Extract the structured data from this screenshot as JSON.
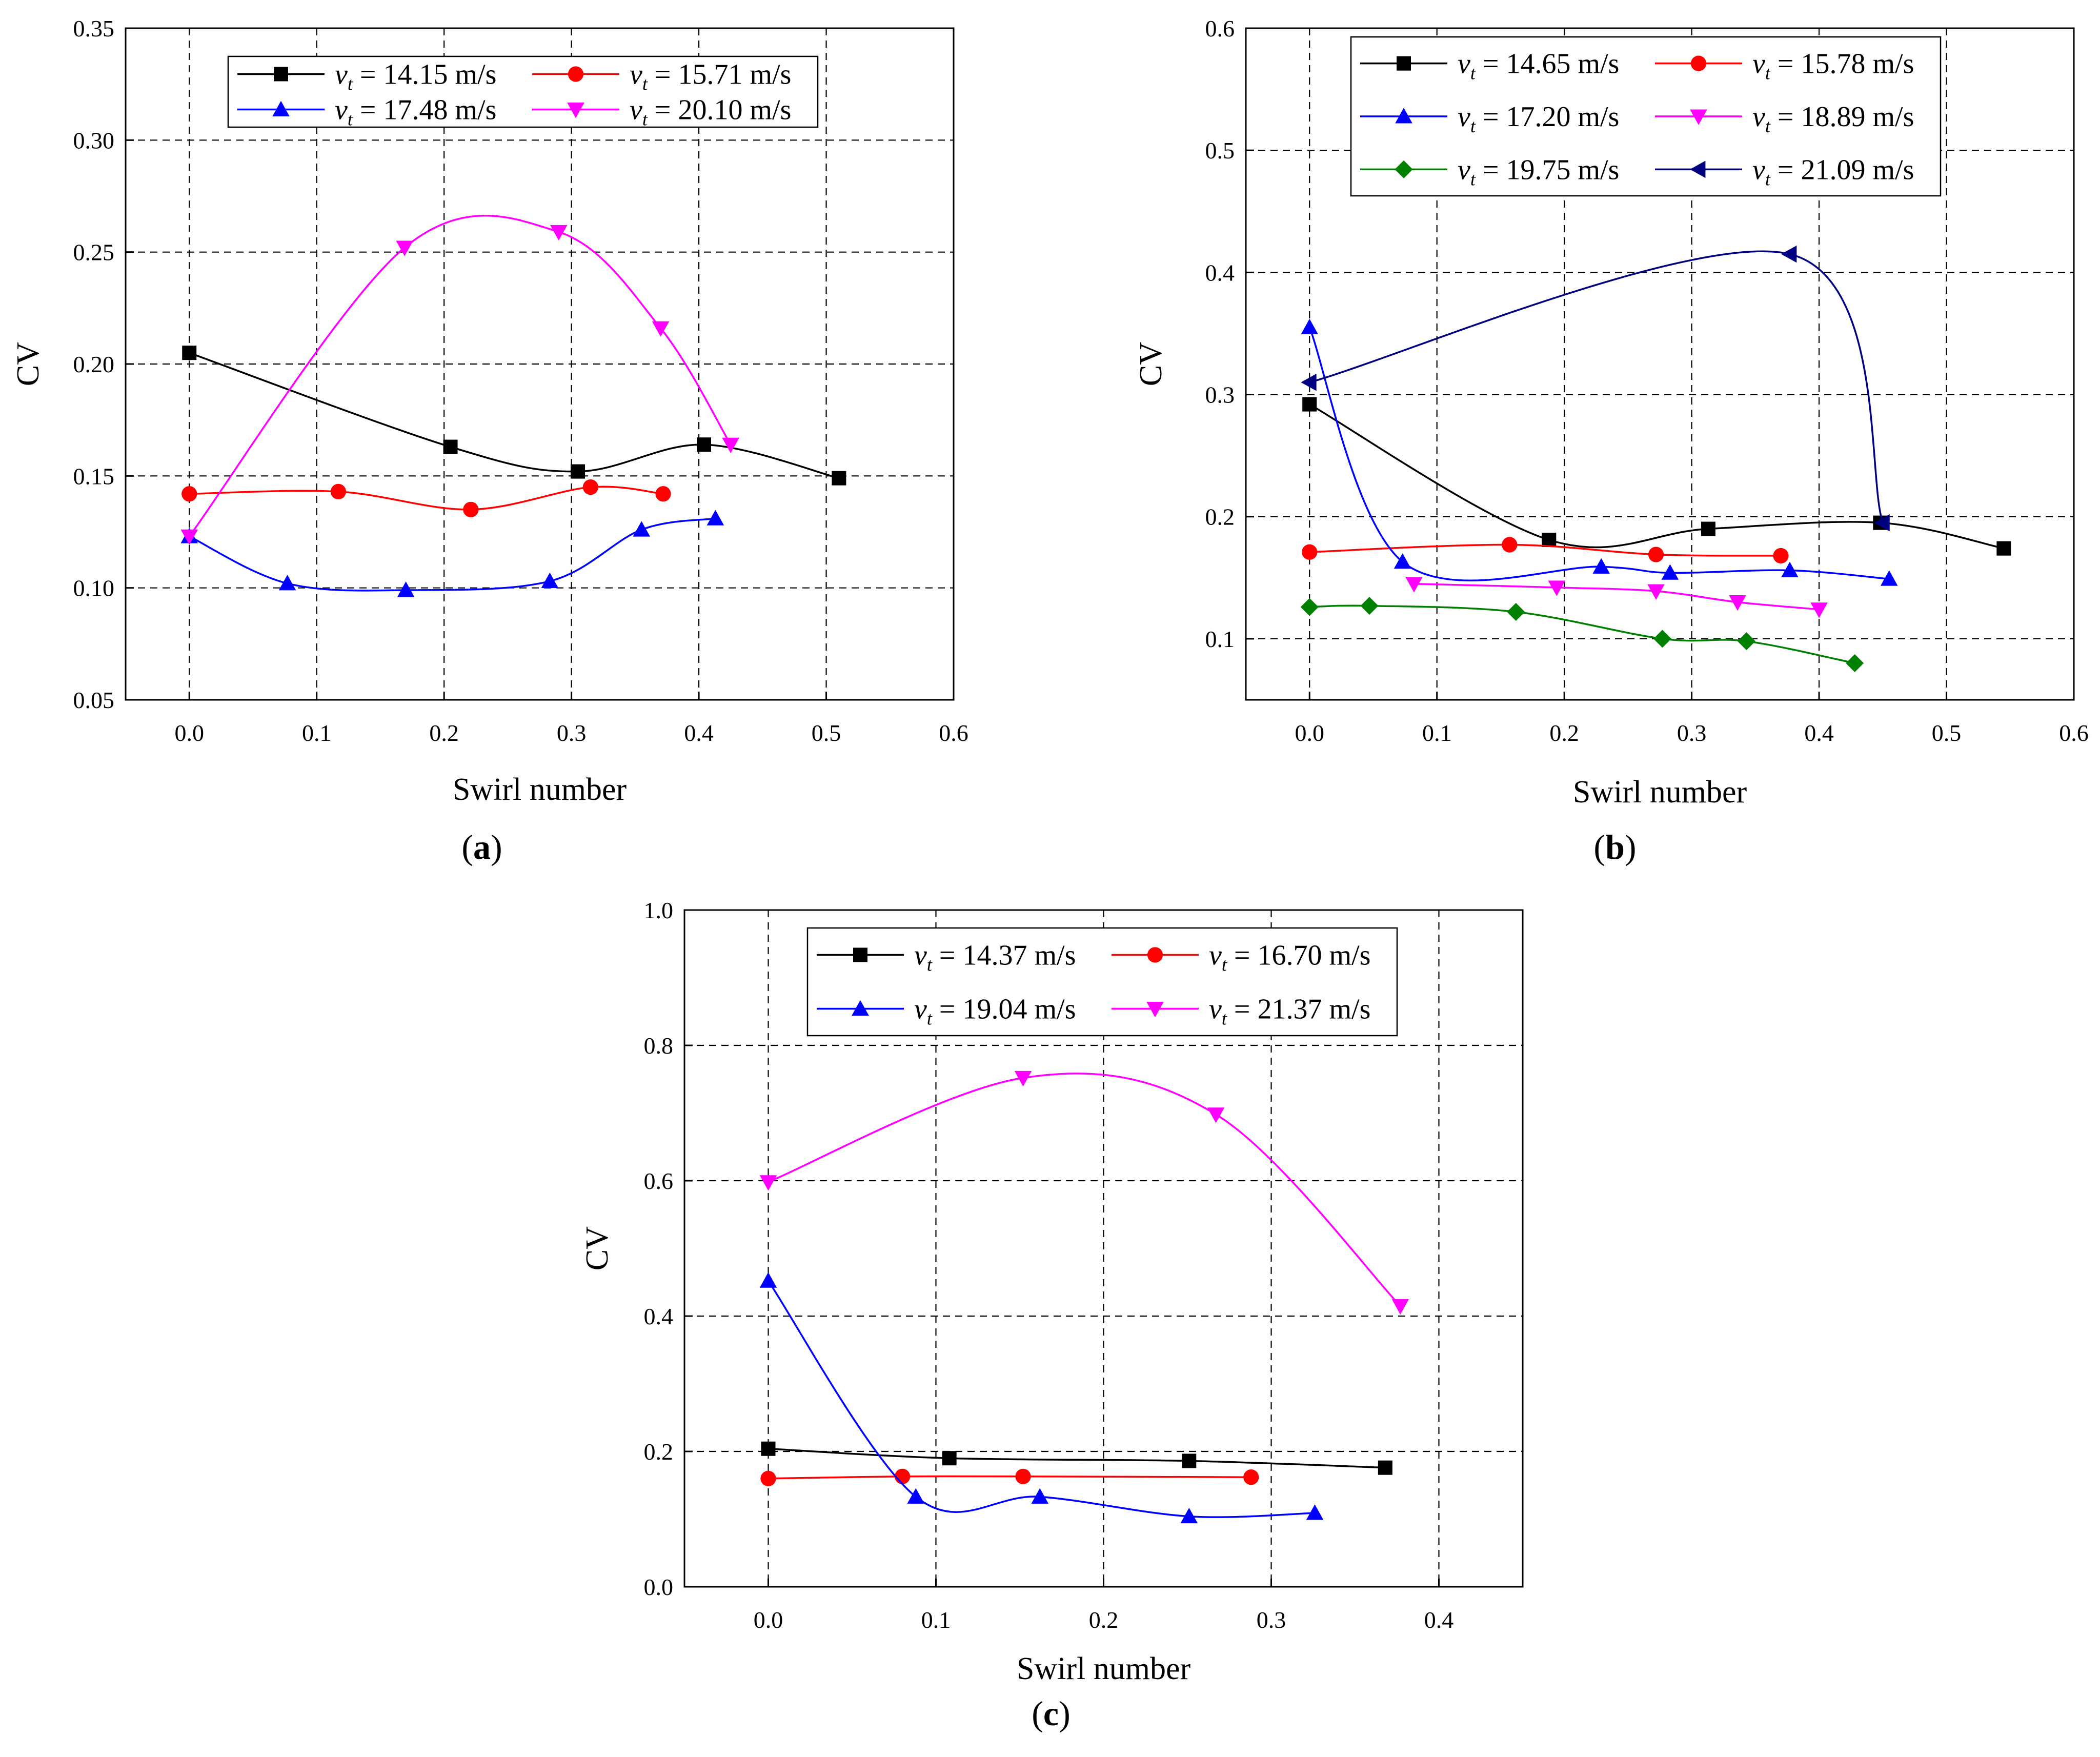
{
  "chart_data": [
    {
      "id": "a",
      "type": "line",
      "panel_label": "(a)",
      "panel_letter": "a",
      "xlabel": "Swirl number",
      "ylabel": "CV",
      "xlim": [
        -0.05,
        0.6
      ],
      "ylim": [
        0.05,
        0.35
      ],
      "xticks": [
        "0.0",
        "0.1",
        "0.2",
        "0.3",
        "0.4",
        "0.5",
        "0.6"
      ],
      "yticks": [
        "0.05",
        "0.10",
        "0.15",
        "0.20",
        "0.25",
        "0.30",
        "0.35"
      ],
      "grid": true,
      "legend_columns": 2,
      "series": [
        {
          "name": "vt = 14.15 m/s",
          "legend_var": "v",
          "legend_sub": "t",
          "legend_value": " = 14.15 m/s",
          "color": "#000000",
          "marker": "square",
          "x": [
            0.0,
            0.205,
            0.305,
            0.404,
            0.51
          ],
          "y": [
            0.205,
            0.163,
            0.152,
            0.164,
            0.149
          ]
        },
        {
          "name": "vt = 15.71 m/s",
          "legend_var": "v",
          "legend_sub": "t",
          "legend_value": " = 15.71 m/s",
          "color": "#ff0000",
          "marker": "circle",
          "x": [
            0.0,
            0.117,
            0.221,
            0.315,
            0.372
          ],
          "y": [
            0.142,
            0.143,
            0.135,
            0.145,
            0.142
          ]
        },
        {
          "name": "vt = 17.48 m/s",
          "legend_var": "v",
          "legend_sub": "t",
          "legend_value": " = 17.48 m/s",
          "color": "#0000ff",
          "marker": "triangle-up",
          "x": [
            0.0,
            0.077,
            0.17,
            0.283,
            0.355,
            0.413
          ],
          "y": [
            0.123,
            0.102,
            0.099,
            0.103,
            0.126,
            0.131
          ]
        },
        {
          "name": "vt = 20.10 m/s",
          "legend_var": "v",
          "legend_sub": "t",
          "legend_value": " = 20.10 m/s",
          "color": "#ff00ff",
          "marker": "triangle-down",
          "x": [
            0.0,
            0.169,
            0.29,
            0.37,
            0.425
          ],
          "y": [
            0.123,
            0.252,
            0.259,
            0.216,
            0.164
          ]
        }
      ]
    },
    {
      "id": "b",
      "type": "line",
      "panel_label": "(b)",
      "panel_letter": "b",
      "xlabel": "Swirl number",
      "ylabel": "CV",
      "xlim": [
        -0.05,
        0.6
      ],
      "ylim": [
        0.05,
        0.6
      ],
      "xticks": [
        "0.0",
        "0.1",
        "0.2",
        "0.3",
        "0.4",
        "0.5",
        "0.6"
      ],
      "yticks": [
        "0.1",
        "0.2",
        "0.3",
        "0.4",
        "0.5",
        "0.6"
      ],
      "grid": true,
      "legend_columns": 2,
      "series": [
        {
          "name": "vt = 14.65 m/s",
          "legend_var": "v",
          "legend_sub": "t",
          "legend_value": " = 14.65 m/s",
          "color": "#000000",
          "marker": "square",
          "x": [
            0.0,
            0.188,
            0.313,
            0.448,
            0.545
          ],
          "y": [
            0.292,
            0.181,
            0.19,
            0.195,
            0.174
          ]
        },
        {
          "name": "vt = 15.78 m/s",
          "legend_var": "v",
          "legend_sub": "t",
          "legend_value": " = 15.78 m/s",
          "color": "#ff0000",
          "marker": "circle",
          "x": [
            0.0,
            0.157,
            0.272,
            0.37
          ],
          "y": [
            0.171,
            0.177,
            0.169,
            0.168
          ]
        },
        {
          "name": "vt = 17.20 m/s",
          "legend_var": "v",
          "legend_sub": "t",
          "legend_value": " = 17.20 m/s",
          "color": "#0000ff",
          "marker": "triangle-up",
          "x": [
            0.0,
            0.073,
            0.229,
            0.283,
            0.377,
            0.455
          ],
          "y": [
            0.355,
            0.163,
            0.159,
            0.154,
            0.156,
            0.149
          ]
        },
        {
          "name": "vt = 18.89 m/s",
          "legend_var": "v",
          "legend_sub": "t",
          "legend_value": " = 18.89 m/s",
          "color": "#ff00ff",
          "marker": "triangle-down",
          "x": [
            0.082,
            0.194,
            0.272,
            0.336,
            0.4
          ],
          "y": [
            0.145,
            0.142,
            0.139,
            0.13,
            0.124
          ]
        },
        {
          "name": "vt = 19.75 m/s",
          "legend_var": "v",
          "legend_sub": "t",
          "legend_value": " = 19.75 m/s",
          "color": "#008000",
          "marker": "diamond",
          "x": [
            0.0,
            0.047,
            0.162,
            0.277,
            0.343,
            0.428
          ],
          "y": [
            0.126,
            0.127,
            0.122,
            0.1,
            0.098,
            0.08
          ]
        },
        {
          "name": "vt = 21.09 m/s",
          "legend_var": "v",
          "legend_sub": "t",
          "legend_value": " = 21.09 m/s",
          "color": "#000080",
          "marker": "triangle-left",
          "x": [
            0.0,
            0.377,
            0.45
          ],
          "y": [
            0.31,
            0.415,
            0.195
          ]
        }
      ]
    },
    {
      "id": "c",
      "type": "line",
      "panel_label": "(c)",
      "panel_letter": "c",
      "xlabel": "Swirl number",
      "ylabel": "CV",
      "xlim": [
        -0.05,
        0.45
      ],
      "ylim": [
        0.0,
        1.0
      ],
      "xticks": [
        "0.0",
        "0.1",
        "0.2",
        "0.3",
        "0.4"
      ],
      "yticks": [
        "0.0",
        "0.2",
        "0.4",
        "0.6",
        "0.8",
        "1.0"
      ],
      "grid": true,
      "legend_columns": 2,
      "series": [
        {
          "name": "vt = 14.37 m/s",
          "legend_var": "v",
          "legend_sub": "t",
          "legend_value": " = 14.37 m/s",
          "color": "#000000",
          "marker": "square",
          "x": [
            0.0,
            0.108,
            0.251,
            0.368
          ],
          "y": [
            0.204,
            0.19,
            0.186,
            0.176
          ]
        },
        {
          "name": "vt = 16.70 m/s",
          "legend_var": "v",
          "legend_sub": "t",
          "legend_value": " = 16.70 m/s",
          "color": "#ff0000",
          "marker": "circle",
          "x": [
            0.0,
            0.08,
            0.152,
            0.288
          ],
          "y": [
            0.16,
            0.163,
            0.163,
            0.162
          ]
        },
        {
          "name": "vt = 19.04 m/s",
          "legend_var": "v",
          "legend_sub": "t",
          "legend_value": " = 19.04 m/s",
          "color": "#0000ff",
          "marker": "triangle-up",
          "x": [
            0.0,
            0.088,
            0.162,
            0.251,
            0.326
          ],
          "y": [
            0.452,
            0.133,
            0.133,
            0.104,
            0.109
          ]
        },
        {
          "name": "vt = 21.37 m/s",
          "legend_var": "v",
          "legend_sub": "t",
          "legend_value": " = 21.37 m/s",
          "color": "#ff00ff",
          "marker": "triangle-down",
          "x": [
            0.0,
            0.152,
            0.267,
            0.377
          ],
          "y": [
            0.598,
            0.752,
            0.698,
            0.415
          ]
        }
      ]
    }
  ]
}
